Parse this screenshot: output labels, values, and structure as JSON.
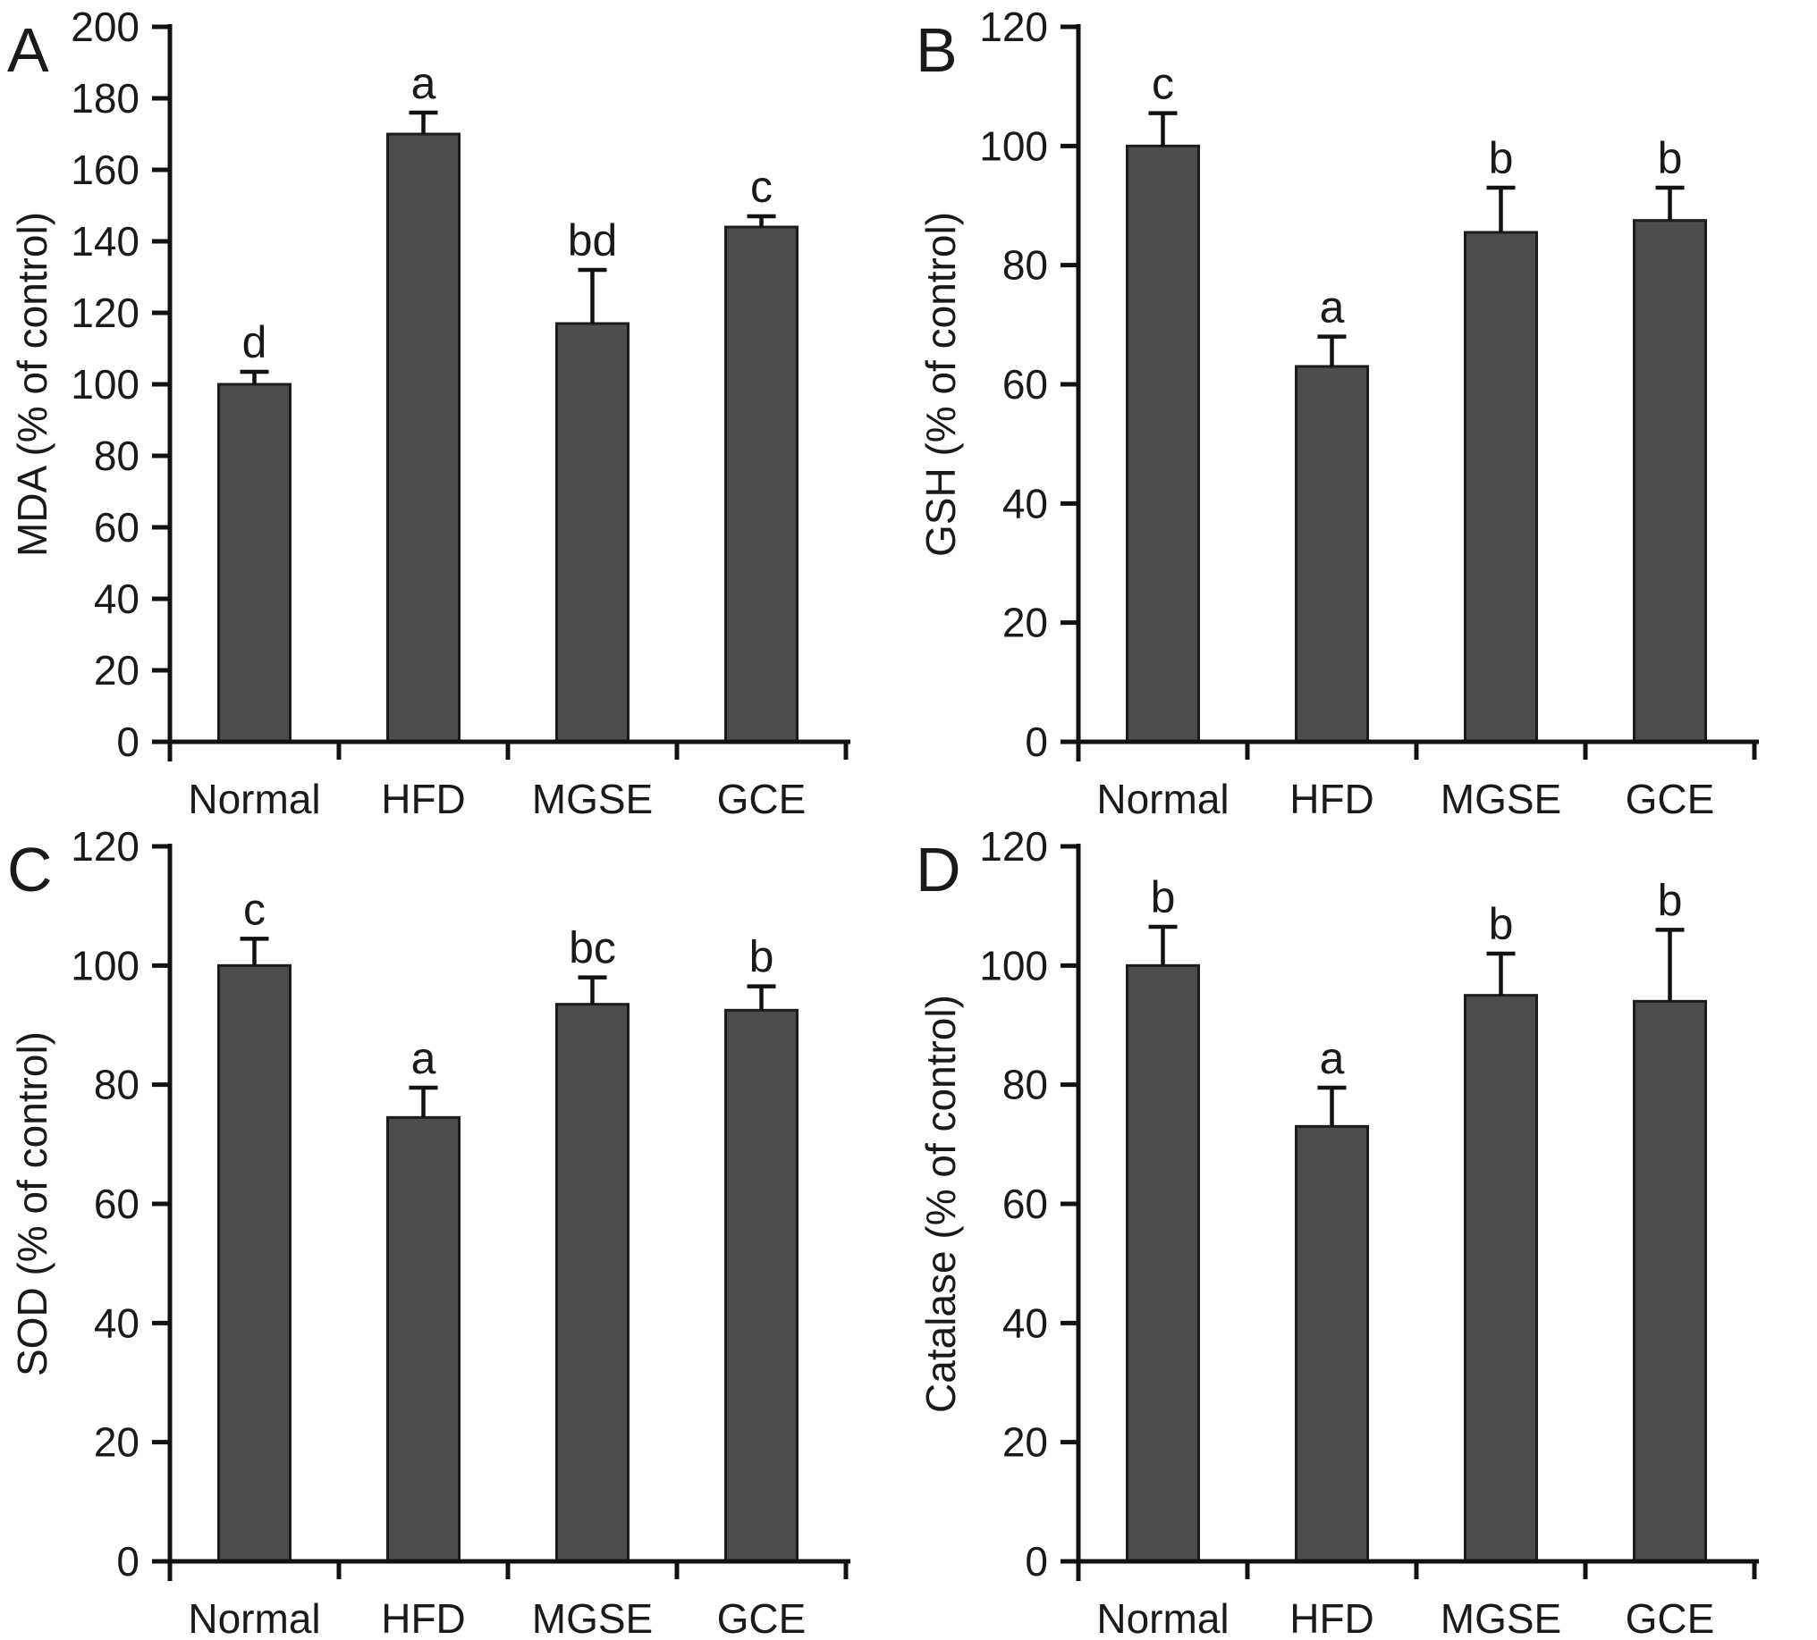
{
  "figure": {
    "background": "#ffffff",
    "bar_fill": "#4d4d4d",
    "bar_stroke": "#1c1c1c",
    "axis_color": "#111111",
    "text_color": "#1a1a1a"
  },
  "chart_data": [
    {
      "type": "bar",
      "panel": "A",
      "title": "",
      "xlabel": "",
      "ylabel": "MDA (% of control)",
      "categories": [
        "Normal",
        "HFD",
        "MGSE",
        "GCE"
      ],
      "values": [
        100,
        170,
        117,
        144
      ],
      "errors": [
        3.5,
        6,
        15,
        3
      ],
      "sig_letters": [
        "d",
        "a",
        "bd",
        "c"
      ],
      "ylim": [
        0,
        200
      ],
      "yticks": [
        0,
        20,
        40,
        60,
        80,
        100,
        120,
        140,
        160,
        180,
        200
      ],
      "grid": false,
      "legend": "none"
    },
    {
      "type": "bar",
      "panel": "B",
      "title": "",
      "xlabel": "",
      "ylabel": "GSH (% of control)",
      "categories": [
        "Normal",
        "HFD",
        "MGSE",
        "GCE"
      ],
      "values": [
        100,
        63,
        85.5,
        87.5
      ],
      "errors": [
        5.5,
        5,
        7.5,
        5.5
      ],
      "sig_letters": [
        "c",
        "a",
        "b",
        "b"
      ],
      "ylim": [
        0,
        120
      ],
      "yticks": [
        0,
        20,
        40,
        60,
        80,
        100,
        120
      ],
      "grid": false,
      "legend": "none"
    },
    {
      "type": "bar",
      "panel": "C",
      "title": "",
      "xlabel": "",
      "ylabel": "SOD (% of control)",
      "categories": [
        "Normal",
        "HFD",
        "MGSE",
        "GCE"
      ],
      "values": [
        100,
        74.5,
        93.5,
        92.5
      ],
      "errors": [
        4.5,
        5,
        4.5,
        4
      ],
      "sig_letters": [
        "c",
        "a",
        "bc",
        "b"
      ],
      "ylim": [
        0,
        120
      ],
      "yticks": [
        0,
        20,
        40,
        60,
        80,
        100,
        120
      ],
      "grid": false,
      "legend": "none"
    },
    {
      "type": "bar",
      "panel": "D",
      "title": "",
      "xlabel": "",
      "ylabel": "Catalase (% of control)",
      "categories": [
        "Normal",
        "HFD",
        "MGSE",
        "GCE"
      ],
      "values": [
        100,
        73,
        95,
        94
      ],
      "errors": [
        6.5,
        6.5,
        7,
        12
      ],
      "sig_letters": [
        "b",
        "a",
        "b",
        "b"
      ],
      "ylim": [
        0,
        120
      ],
      "yticks": [
        0,
        20,
        40,
        60,
        80,
        100,
        120
      ],
      "grid": false,
      "legend": "none"
    }
  ]
}
